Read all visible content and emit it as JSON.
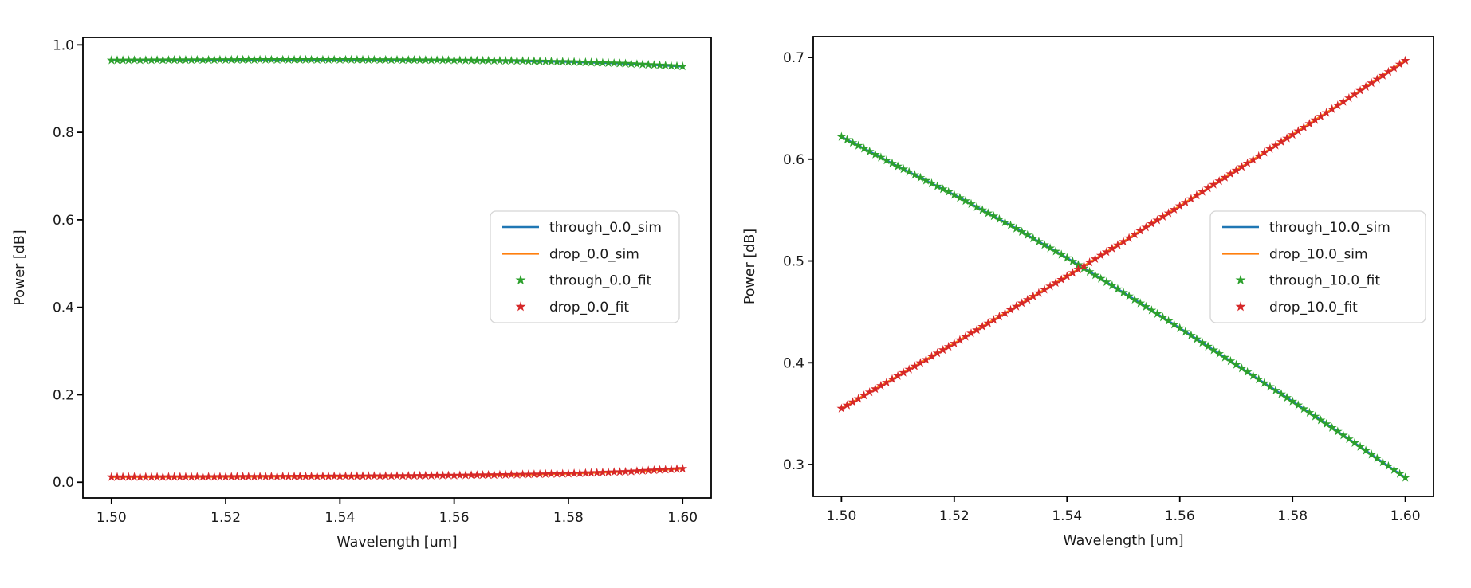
{
  "figure": {
    "background": "#ffffff",
    "text_color": "#1a1a1a",
    "spine_color": "#000000"
  },
  "colors": {
    "sim_through": "#1f77b4",
    "sim_drop": "#ff7f0e",
    "fit_through": "#2ca02c",
    "fit_drop": "#d62728"
  },
  "chart_data": [
    {
      "type": "line",
      "title": "",
      "xlabel": "Wavelength [um]",
      "ylabel": "Power [dB]",
      "xlim": [
        1.495,
        1.605
      ],
      "ylim": [
        -0.036,
        1.017
      ],
      "xticks": [
        1.5,
        1.52,
        1.54,
        1.56,
        1.58,
        1.6
      ],
      "xtick_labels": [
        "1.50",
        "1.52",
        "1.54",
        "1.56",
        "1.58",
        "1.60"
      ],
      "yticks": [
        0.0,
        0.2,
        0.4,
        0.6,
        0.8,
        1.0
      ],
      "ytick_labels": [
        "0.0",
        "0.2",
        "0.4",
        "0.6",
        "0.8",
        "1.0"
      ],
      "grid": false,
      "legend_position": "center right",
      "x": [
        1.5,
        1.51,
        1.52,
        1.53,
        1.54,
        1.55,
        1.56,
        1.57,
        1.58,
        1.59,
        1.6
      ],
      "series": [
        {
          "name": "through_0.0_sim",
          "style": "line",
          "color": "#1f77b4",
          "values": [
            0.965,
            0.9655,
            0.966,
            0.9662,
            0.9662,
            0.9658,
            0.965,
            0.9638,
            0.9615,
            0.9575,
            0.951
          ]
        },
        {
          "name": "drop_0.0_sim",
          "style": "line",
          "color": "#ff7f0e",
          "values": [
            0.012,
            0.0122,
            0.0126,
            0.0131,
            0.0137,
            0.0145,
            0.0156,
            0.0172,
            0.0196,
            0.024,
            0.031
          ]
        },
        {
          "name": "through_0.0_fit",
          "style": "star",
          "color": "#2ca02c",
          "values": [
            0.965,
            0.9655,
            0.966,
            0.9662,
            0.9662,
            0.9658,
            0.965,
            0.9638,
            0.9615,
            0.9575,
            0.951
          ]
        },
        {
          "name": "drop_0.0_fit",
          "style": "star",
          "color": "#d62728",
          "values": [
            0.012,
            0.0122,
            0.0126,
            0.0131,
            0.0137,
            0.0145,
            0.0156,
            0.0172,
            0.0196,
            0.024,
            0.031
          ]
        }
      ]
    },
    {
      "type": "line",
      "title": "",
      "xlabel": "Wavelength [um]",
      "ylabel": "Power [dB]",
      "xlim": [
        1.495,
        1.605
      ],
      "ylim": [
        0.2687,
        0.7204
      ],
      "xticks": [
        1.5,
        1.52,
        1.54,
        1.56,
        1.58,
        1.6
      ],
      "xtick_labels": [
        "1.50",
        "1.52",
        "1.54",
        "1.56",
        "1.58",
        "1.60"
      ],
      "yticks": [
        0.3,
        0.4,
        0.5,
        0.6,
        0.7
      ],
      "ytick_labels": [
        "0.3",
        "0.4",
        "0.5",
        "0.6",
        "0.7"
      ],
      "grid": false,
      "legend_position": "center right",
      "x": [
        1.5,
        1.51,
        1.52,
        1.53,
        1.54,
        1.55,
        1.56,
        1.57,
        1.58,
        1.59,
        1.6
      ],
      "series": [
        {
          "name": "through_10.0_sim",
          "style": "line",
          "color": "#1f77b4",
          "values": [
            0.622,
            0.593,
            0.565,
            0.535,
            0.503,
            0.469,
            0.434,
            0.398,
            0.362,
            0.325,
            0.287
          ]
        },
        {
          "name": "drop_10.0_sim",
          "style": "line",
          "color": "#ff7f0e",
          "values": [
            0.355,
            0.387,
            0.419,
            0.452,
            0.485,
            0.519,
            0.554,
            0.589,
            0.624,
            0.66,
            0.697
          ]
        },
        {
          "name": "through_10.0_fit",
          "style": "star",
          "color": "#2ca02c",
          "values": [
            0.622,
            0.593,
            0.565,
            0.535,
            0.503,
            0.469,
            0.434,
            0.398,
            0.362,
            0.325,
            0.287
          ]
        },
        {
          "name": "drop_10.0_fit",
          "style": "star",
          "color": "#d62728",
          "values": [
            0.355,
            0.387,
            0.419,
            0.452,
            0.485,
            0.519,
            0.554,
            0.589,
            0.624,
            0.66,
            0.697
          ]
        }
      ]
    }
  ]
}
